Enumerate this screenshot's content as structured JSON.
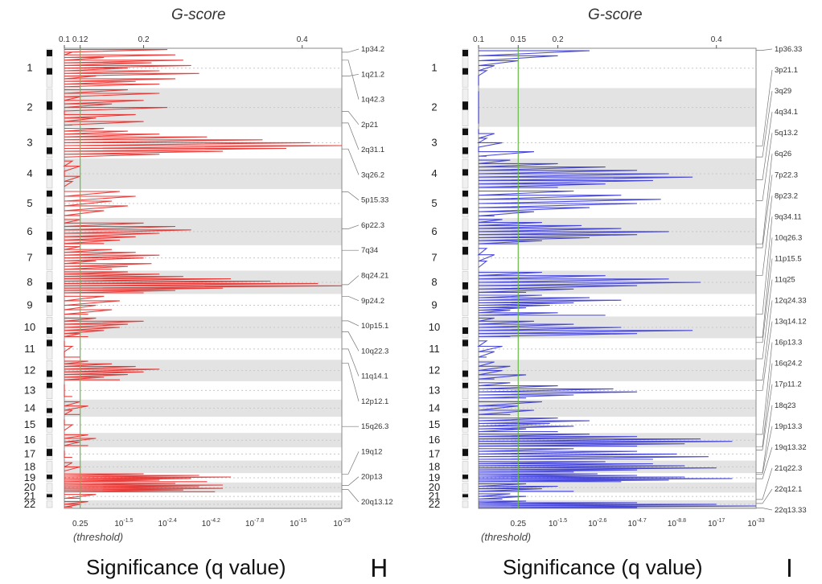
{
  "chart_data": [
    {
      "type": "line",
      "panel_letter": "H",
      "title": "G-score",
      "xlabel": "Significance (q value)",
      "threshold_label": "(threshold)",
      "color": "#e8201c",
      "threshold_color": "#66bb44",
      "gscore_ticks": [
        "0.1",
        "0.12",
        "0.2",
        "0.4"
      ],
      "gscore_tick_values": [
        0.1,
        0.12,
        0.2,
        0.4
      ],
      "gscore_range": [
        0.1,
        0.45
      ],
      "threshold_gscore": 0.12,
      "q_ticks": [
        {
          "base": "0.25",
          "exp": ""
        },
        {
          "base": "10",
          "exp": "-1.5"
        },
        {
          "base": "10",
          "exp": "-2.4"
        },
        {
          "base": "10",
          "exp": "-4.2"
        },
        {
          "base": "10",
          "exp": "-7.8"
        },
        {
          "base": "10",
          "exp": "-15"
        },
        {
          "base": "10",
          "exp": "-29"
        }
      ],
      "chromosomes": [
        "1",
        "2",
        "3",
        "4",
        "5",
        "6",
        "7",
        "8",
        "9",
        "10",
        "11",
        "12",
        "13",
        "14",
        "15",
        "16",
        "17",
        "18",
        "19",
        "20",
        "21",
        "22"
      ],
      "peak_labels": [
        "1p34.2",
        "1q21.2",
        "1q42.3",
        "2p21",
        "2q31.1",
        "3q26.2",
        "5p15.33",
        "6p22.3",
        "7q34",
        "8q24.21",
        "9p24.2",
        "10p15.1",
        "10q22.3",
        "11q14.1",
        "12p12.1",
        "15q26.3",
        "19q12",
        "20p13",
        "20q13.12"
      ],
      "peak_label_targets": [
        0.1,
        0.7,
        0.3,
        0.6,
        0.9,
        0.7,
        0.1,
        0.4,
        0.2,
        0.6,
        0.1,
        0.2,
        0.7,
        0.5,
        0.15,
        0.6,
        0.1,
        0.3,
        0.7
      ],
      "peak_label_chrom_index": [
        0,
        0,
        0,
        1,
        1,
        2,
        4,
        5,
        6,
        7,
        8,
        9,
        9,
        10,
        11,
        14,
        18,
        19,
        19
      ],
      "profile_gscores": [
        [
          0.23,
          0.11,
          0.24,
          0.15,
          0.25,
          0.21,
          0.26,
          0.18,
          0.22,
          0.27,
          0.14,
          0.24,
          0.19,
          0.22,
          0.12
        ],
        [
          0.18,
          0.22,
          0.12,
          0.2,
          0.16,
          0.23,
          0.1,
          0.19,
          0.14,
          0.2,
          0.11
        ],
        [
          0.15,
          0.18,
          0.22,
          0.28,
          0.35,
          0.41,
          0.45,
          0.38,
          0.3,
          0.22,
          0.1
        ],
        [
          0.11,
          0.12,
          0.1,
          0.12,
          0.11,
          0.1
        ],
        [
          0.17,
          0.19,
          0.16,
          0.18,
          0.15,
          0.12
        ],
        [
          0.12,
          0.2,
          0.24,
          0.26,
          0.22,
          0.19,
          0.17,
          0.15
        ],
        [
          0.12,
          0.16,
          0.19,
          0.22,
          0.2,
          0.14,
          0.21,
          0.18,
          0.16
        ],
        [
          0.18,
          0.22,
          0.25,
          0.31,
          0.36,
          0.42,
          0.45,
          0.3,
          0.24,
          0.2
        ],
        [
          0.15,
          0.17,
          0.14,
          0.16,
          0.13
        ],
        [
          0.14,
          0.2,
          0.18,
          0.17,
          0.15,
          0.12,
          0.13
        ],
        [
          0.1,
          0.11,
          0.1,
          0.12
        ],
        [
          0.13,
          0.16,
          0.19,
          0.22,
          0.2,
          0.18,
          0.15,
          0.17
        ],
        [
          0.1,
          0.1,
          0.11
        ],
        [
          0.12,
          0.13,
          0.11,
          0.12
        ],
        [
          0.1,
          0.11,
          0.1
        ],
        [
          0.13,
          0.14,
          0.12,
          0.13
        ],
        [
          0.1,
          0.11
        ],
        [
          0.11,
          0.12,
          0.1
        ],
        [
          0.2,
          0.27,
          0.31,
          0.26,
          0.22,
          0.28
        ],
        [
          0.24,
          0.3,
          0.27,
          0.3,
          0.25,
          0.29
        ],
        [
          0.14,
          0.12
        ],
        [
          0.13,
          0.12,
          0.11
        ]
      ]
    },
    {
      "type": "line",
      "panel_letter": "I",
      "title": "G-score",
      "xlabel": "Significance (q value)",
      "threshold_label": "(threshold)",
      "color": "#2b2bd6",
      "threshold_color": "#66bb44",
      "gscore_ticks": [
        "0.1",
        "0.15",
        "0.2",
        "0.4"
      ],
      "gscore_tick_values": [
        0.1,
        0.15,
        0.2,
        0.4
      ],
      "gscore_range": [
        0.1,
        0.45
      ],
      "threshold_gscore": 0.15,
      "q_ticks": [
        {
          "base": "0.25",
          "exp": ""
        },
        {
          "base": "10",
          "exp": "-1.5"
        },
        {
          "base": "10",
          "exp": "-2.6"
        },
        {
          "base": "10",
          "exp": "-4.7"
        },
        {
          "base": "10",
          "exp": "-8.8"
        },
        {
          "base": "10",
          "exp": "-17"
        },
        {
          "base": "10",
          "exp": "-33"
        }
      ],
      "chromosomes": [
        "1",
        "2",
        "3",
        "4",
        "5",
        "6",
        "7",
        "8",
        "9",
        "10",
        "11",
        "12",
        "13",
        "14",
        "15",
        "16",
        "17",
        "18",
        "19",
        "20",
        "21",
        "22"
      ],
      "peak_labels": [
        "1p36.33",
        "3p21.1",
        "3q29",
        "4q34.1",
        "5q13.2",
        "6q26",
        "7p22.3",
        "8p23.2",
        "9q34.11",
        "10q26.3",
        "11p15.5",
        "11q25",
        "12q24.33",
        "13q14.12",
        "16p13.3",
        "16q24.2",
        "17p11.2",
        "18q23",
        "19p13.3",
        "19q13.32",
        "21q22.3",
        "22q12.1",
        "22q13.33"
      ],
      "peak_label_targets": [
        0.05,
        0.6,
        0.95,
        0.7,
        0.4,
        0.95,
        0.1,
        0.2,
        0.9,
        0.95,
        0.2,
        0.95,
        0.95,
        0.5,
        0.1,
        0.95,
        0.2,
        0.95,
        0.1,
        0.6,
        0.9,
        0.4,
        0.95
      ],
      "peak_label_chrom_index": [
        0,
        2,
        2,
        3,
        4,
        5,
        6,
        7,
        8,
        9,
        10,
        10,
        11,
        12,
        15,
        15,
        16,
        17,
        18,
        18,
        20,
        21,
        21
      ],
      "profile_gscores": [
        [
          0.24,
          0.2,
          0.15,
          0.12,
          0.11,
          0.1,
          0.1,
          0.1
        ],
        [
          0.1,
          0.1,
          0.1,
          0.1,
          0.1,
          0.1
        ],
        [
          0.1,
          0.12,
          0.11,
          0.13,
          0.1,
          0.17,
          0.11
        ],
        [
          0.14,
          0.2,
          0.26,
          0.3,
          0.34,
          0.37,
          0.32,
          0.26,
          0.2
        ],
        [
          0.22,
          0.28,
          0.33,
          0.3,
          0.24,
          0.17,
          0.12
        ],
        [
          0.13,
          0.18,
          0.23,
          0.28,
          0.34,
          0.3,
          0.24,
          0.18,
          0.15
        ],
        [
          0.11,
          0.12,
          0.11,
          0.1
        ],
        [
          0.18,
          0.26,
          0.34,
          0.38,
          0.3,
          0.22,
          0.16
        ],
        [
          0.18,
          0.24,
          0.28,
          0.22,
          0.19,
          0.16,
          0.14,
          0.2,
          0.26
        ],
        [
          0.12,
          0.17,
          0.22,
          0.28,
          0.37,
          0.3,
          0.14
        ],
        [
          0.11,
          0.13,
          0.12,
          0.11
        ],
        [
          0.12,
          0.14,
          0.13,
          0.16,
          0.12
        ],
        [
          0.14,
          0.2,
          0.27,
          0.3,
          0.22,
          0.16
        ],
        [
          0.18,
          0.15,
          0.17,
          0.14
        ],
        [
          0.2,
          0.24,
          0.19,
          0.22,
          0.16,
          0.2
        ],
        [
          0.24,
          0.3,
          0.38,
          0.42,
          0.36,
          0.3
        ],
        [
          0.22,
          0.3,
          0.35,
          0.39,
          0.32
        ],
        [
          0.26,
          0.32,
          0.36,
          0.4,
          0.3,
          0.22
        ],
        [
          0.25,
          0.3,
          0.36,
          0.42,
          0.34,
          0.28
        ],
        [
          0.16,
          0.2,
          0.18,
          0.22
        ],
        [
          0.14,
          0.16,
          0.13
        ],
        [
          0.16,
          0.3,
          0.4,
          0.45,
          0.3
        ]
      ]
    }
  ]
}
